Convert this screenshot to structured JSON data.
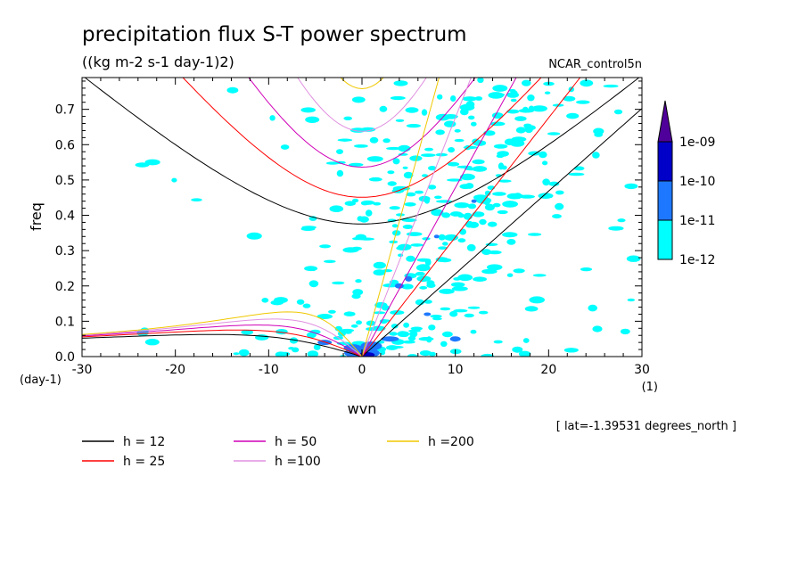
{
  "chart_data": {
    "type": "heatmap",
    "title": "precipitation flux S-T power spectrum",
    "subtitle": "((kg m-2 s-1 day-1)2)",
    "dataset_label": "NCAR_control5n",
    "xlabel": "wvn",
    "ylabel": "freq",
    "y_unit": "(day-1)",
    "x_unit": "(1)",
    "xlim": [
      -30,
      30
    ],
    "ylim": [
      0,
      0.79
    ],
    "xticks": [
      -30,
      -20,
      -10,
      0,
      10,
      20,
      30
    ],
    "yticks": [
      0.0,
      0.1,
      0.2,
      0.3,
      0.4,
      0.5,
      0.6,
      0.7
    ],
    "xtick_labels": [
      "-30",
      "-20",
      "-10",
      "0",
      "10",
      "20",
      "30"
    ],
    "ytick_labels": [
      "0.0",
      "0.1",
      "0.2",
      "0.3",
      "0.4",
      "0.5",
      "0.6",
      "0.7"
    ],
    "colorbar": {
      "levels": [
        "1e-12",
        "1e-11",
        "1e-10",
        "1e-09"
      ],
      "colors": [
        "#00ffff",
        "#1e78ff",
        "#0000c8",
        "#50009a"
      ]
    },
    "annotation": "[ lat=-1.39531 degrees_north ]",
    "dispersion_curves": [
      {
        "label": "h = 12",
        "h": 12,
        "color": "#000000"
      },
      {
        "label": "h = 25",
        "h": 25,
        "color": "#ff0000"
      },
      {
        "label": "h = 50",
        "h": 50,
        "color": "#d000b8"
      },
      {
        "label": "h =100",
        "h": 100,
        "color": "#e090e0"
      },
      {
        "label": "h =200",
        "h": 200,
        "color": "#f0c800"
      }
    ],
    "grid": false,
    "legend_position": "bottom-left"
  }
}
